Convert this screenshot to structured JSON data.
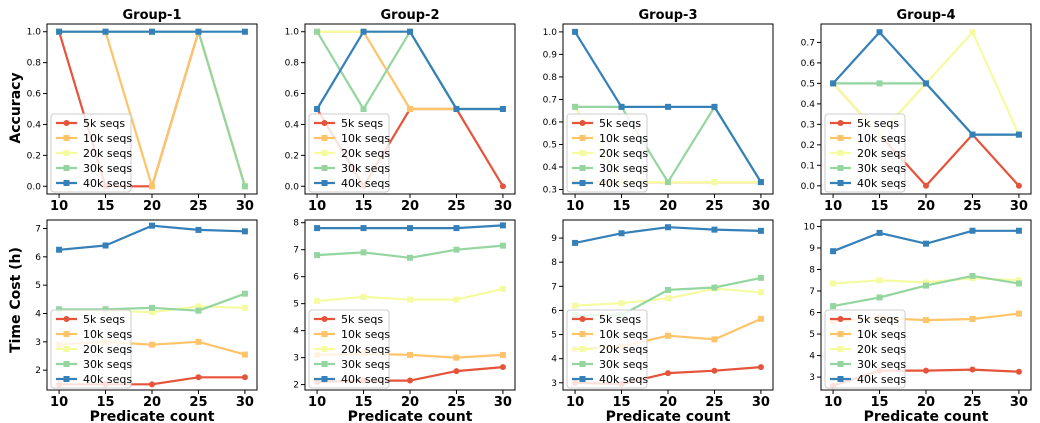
{
  "chart_data": {
    "type": "line",
    "x": [
      10,
      15,
      20,
      25,
      30
    ],
    "xlabel": "Predicate count",
    "row_ylabels": [
      "Accuracy",
      "Time Cost (h)"
    ],
    "legend_placement": "lower-left",
    "colors": {
      "5k seqs": "#e5533a",
      "10k seqs": "#fdc46a",
      "20k seqs": "#f5fba0",
      "30k seqs": "#95d6a0",
      "40k seqs": "#3580b9"
    },
    "legend": [
      "5k seqs",
      "10k seqs",
      "20k seqs",
      "30k seqs",
      "40k seqs"
    ],
    "panels": [
      {
        "title": "Group-1",
        "row": 0,
        "col": 0,
        "ylim": [
          -0.05,
          1.05
        ],
        "yticks": [
          0.0,
          0.2,
          0.4,
          0.6,
          0.8,
          1.0
        ],
        "ytick_labels": [
          "0.0",
          "0.2",
          "0.4",
          "0.6",
          "0.8",
          "1.0"
        ],
        "series": [
          {
            "name": "5k seqs",
            "values": [
              1.0,
              0.0,
              0.0,
              1.0,
              0.0
            ]
          },
          {
            "name": "10k seqs",
            "values": [
              1.0,
              1.0,
              0.0,
              1.0,
              0.0
            ]
          },
          {
            "name": "20k seqs",
            "values": [
              1.0,
              1.0,
              1.0,
              1.0,
              0.0
            ]
          },
          {
            "name": "30k seqs",
            "values": [
              1.0,
              1.0,
              1.0,
              1.0,
              0.0
            ]
          },
          {
            "name": "40k seqs",
            "values": [
              1.0,
              1.0,
              1.0,
              1.0,
              1.0
            ]
          }
        ]
      },
      {
        "title": "Group-2",
        "row": 0,
        "col": 1,
        "ylim": [
          -0.05,
          1.05
        ],
        "yticks": [
          0.0,
          0.2,
          0.4,
          0.6,
          0.8,
          1.0
        ],
        "ytick_labels": [
          "0.0",
          "0.2",
          "0.4",
          "0.6",
          "0.8",
          "1.0"
        ],
        "series": [
          {
            "name": "5k seqs",
            "values": [
              0.5,
              0.0,
              0.5,
              0.5,
              0.0
            ]
          },
          {
            "name": "10k seqs",
            "values": [
              1.0,
              1.0,
              0.5,
              0.5,
              0.5
            ]
          },
          {
            "name": "20k seqs",
            "values": [
              1.0,
              1.0,
              1.0,
              0.5,
              0.5
            ]
          },
          {
            "name": "30k seqs",
            "values": [
              1.0,
              0.5,
              1.0,
              0.5,
              0.5
            ]
          },
          {
            "name": "40k seqs",
            "values": [
              0.5,
              1.0,
              1.0,
              0.5,
              0.5
            ]
          }
        ]
      },
      {
        "title": "Group-3",
        "row": 0,
        "col": 2,
        "ylim": [
          0.28,
          1.035
        ],
        "yticks": [
          0.3,
          0.4,
          0.5,
          0.6,
          0.7,
          0.8,
          0.9,
          1.0
        ],
        "ytick_labels": [
          "0.3",
          "0.4",
          "0.5",
          "0.6",
          "0.7",
          "0.8",
          "0.9",
          "1.0"
        ],
        "series": [
          {
            "name": "5k seqs",
            "values": [
              0.333,
              0.333,
              0.333,
              0.333,
              0.333
            ]
          },
          {
            "name": "10k seqs",
            "values": [
              0.333,
              0.333,
              0.333,
              0.333,
              0.333
            ]
          },
          {
            "name": "20k seqs",
            "values": [
              0.667,
              0.333,
              0.333,
              0.333,
              0.333
            ]
          },
          {
            "name": "30k seqs",
            "values": [
              0.667,
              0.667,
              0.333,
              0.667,
              0.333
            ]
          },
          {
            "name": "40k seqs",
            "values": [
              1.0,
              0.667,
              0.667,
              0.667,
              0.333
            ]
          }
        ]
      },
      {
        "title": "Group-4",
        "row": 0,
        "col": 3,
        "ylim": [
          -0.04,
          0.79
        ],
        "yticks": [
          0.0,
          0.1,
          0.2,
          0.3,
          0.4,
          0.5,
          0.6,
          0.7
        ],
        "ytick_labels": [
          "0.0",
          "0.1",
          "0.2",
          "0.3",
          "0.4",
          "0.5",
          "0.6",
          "0.7"
        ],
        "series": [
          {
            "name": "5k seqs",
            "values": [
              0.5,
              0.25,
              0.0,
              0.25,
              0.0
            ]
          },
          {
            "name": "10k seqs",
            "values": [
              0.5,
              0.25,
              0.5,
              0.25,
              0.25
            ]
          },
          {
            "name": "20k seqs",
            "values": [
              0.5,
              0.25,
              0.5,
              0.75,
              0.25
            ]
          },
          {
            "name": "30k seqs",
            "values": [
              0.5,
              0.5,
              0.5,
              0.25,
              0.25
            ]
          },
          {
            "name": "40k seqs",
            "values": [
              0.5,
              0.75,
              0.5,
              0.25,
              0.25
            ]
          }
        ]
      },
      {
        "title": "",
        "row": 1,
        "col": 0,
        "ylim": [
          1.3,
          7.3
        ],
        "yticks": [
          2,
          3,
          4,
          5,
          6,
          7
        ],
        "ytick_labels": [
          "2",
          "3",
          "4",
          "5",
          "6",
          "7"
        ],
        "series": [
          {
            "name": "5k seqs",
            "values": [
              1.5,
              1.5,
              1.5,
              1.75,
              1.75
            ]
          },
          {
            "name": "10k seqs",
            "values": [
              2.9,
              3.0,
              2.9,
              3.0,
              2.55
            ]
          },
          {
            "name": "20k seqs",
            "values": [
              4.1,
              4.1,
              4.05,
              4.25,
              4.2
            ]
          },
          {
            "name": "30k seqs",
            "values": [
              4.15,
              4.15,
              4.2,
              4.1,
              4.7
            ]
          },
          {
            "name": "40k seqs",
            "values": [
              6.25,
              6.4,
              7.1,
              6.95,
              6.9
            ]
          }
        ]
      },
      {
        "title": "",
        "row": 1,
        "col": 1,
        "ylim": [
          1.8,
          8.1
        ],
        "yticks": [
          2,
          3,
          4,
          5,
          6,
          7,
          8
        ],
        "ytick_labels": [
          "2",
          "3",
          "4",
          "5",
          "6",
          "7",
          "8"
        ],
        "series": [
          {
            "name": "5k seqs",
            "values": [
              2.1,
              2.15,
              2.15,
              2.5,
              2.65
            ]
          },
          {
            "name": "10k seqs",
            "values": [
              3.1,
              3.15,
              3.1,
              3.0,
              3.1
            ]
          },
          {
            "name": "20k seqs",
            "values": [
              5.1,
              5.25,
              5.15,
              5.15,
              5.55
            ]
          },
          {
            "name": "30k seqs",
            "values": [
              6.8,
              6.9,
              6.7,
              7.0,
              7.15
            ]
          },
          {
            "name": "40k seqs",
            "values": [
              7.8,
              7.8,
              7.8,
              7.8,
              7.9
            ]
          }
        ]
      },
      {
        "title": "",
        "row": 1,
        "col": 2,
        "ylim": [
          2.7,
          9.75
        ],
        "yticks": [
          3,
          4,
          5,
          6,
          7,
          8,
          9
        ],
        "ytick_labels": [
          "3",
          "4",
          "5",
          "6",
          "7",
          "8",
          "9"
        ],
        "series": [
          {
            "name": "5k seqs",
            "values": [
              3.0,
              2.95,
              3.4,
              3.5,
              3.65
            ]
          },
          {
            "name": "10k seqs",
            "values": [
              4.4,
              4.5,
              4.95,
              4.8,
              5.65
            ]
          },
          {
            "name": "20k seqs",
            "values": [
              6.2,
              6.3,
              6.5,
              6.9,
              6.75
            ]
          },
          {
            "name": "30k seqs",
            "values": [
              5.8,
              5.8,
              6.85,
              6.95,
              7.35
            ]
          },
          {
            "name": "40k seqs",
            "values": [
              8.8,
              9.2,
              9.45,
              9.35,
              9.3
            ]
          }
        ]
      },
      {
        "title": "",
        "row": 1,
        "col": 3,
        "ylim": [
          2.4,
          10.3
        ],
        "yticks": [
          3,
          4,
          5,
          6,
          7,
          8,
          9,
          10
        ],
        "ytick_labels": [
          "3",
          "4",
          "5",
          "6",
          "7",
          "8",
          "9",
          "10"
        ],
        "series": [
          {
            "name": "5k seqs",
            "values": [
              2.6,
              3.3,
              3.3,
              3.35,
              3.25
            ]
          },
          {
            "name": "10k seqs",
            "values": [
              5.6,
              5.75,
              5.65,
              5.7,
              5.95
            ]
          },
          {
            "name": "20k seqs",
            "values": [
              7.35,
              7.5,
              7.4,
              7.6,
              7.5
            ]
          },
          {
            "name": "30k seqs",
            "values": [
              6.3,
              6.7,
              7.25,
              7.7,
              7.35
            ]
          },
          {
            "name": "40k seqs",
            "values": [
              8.85,
              9.7,
              9.2,
              9.8,
              9.8
            ]
          }
        ]
      }
    ]
  }
}
